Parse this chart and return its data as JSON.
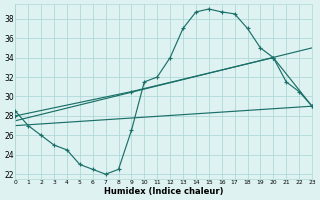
{
  "xlabel": "Humidex (Indice chaleur)",
  "bg_color": "#dff2f2",
  "grid_color": "#aed8d8",
  "line_color": "#1a7068",
  "xlim": [
    0,
    23
  ],
  "ylim": [
    21.5,
    39.5
  ],
  "yticks": [
    22,
    24,
    26,
    28,
    30,
    32,
    34,
    36,
    38
  ],
  "xticks": [
    0,
    1,
    2,
    3,
    4,
    5,
    6,
    7,
    8,
    9,
    10,
    11,
    12,
    13,
    14,
    15,
    16,
    17,
    18,
    19,
    20,
    21,
    22,
    23
  ],
  "curve1_x": [
    0,
    1,
    2,
    3,
    4,
    5,
    6,
    7,
    8,
    9,
    10,
    11,
    12,
    13,
    14,
    15,
    16,
    17,
    18,
    19,
    20,
    21,
    22,
    23
  ],
  "curve1_y": [
    28.5,
    27.0,
    26.0,
    25.0,
    24.5,
    23.0,
    22.5,
    22.0,
    22.5,
    26.5,
    31.5,
    32.0,
    34.0,
    37.0,
    38.7,
    39.0,
    38.7,
    38.5,
    37.0,
    35.0,
    34.0,
    31.5,
    30.5,
    29.0
  ],
  "curve2_x": [
    0,
    9,
    20,
    23
  ],
  "curve2_y": [
    28.0,
    30.5,
    34.0,
    29.0
  ],
  "curve3_x": [
    0,
    23
  ],
  "curve3_y": [
    27.5,
    35.0
  ],
  "curve4_x": [
    0,
    23
  ],
  "curve4_y": [
    27.0,
    29.0
  ]
}
